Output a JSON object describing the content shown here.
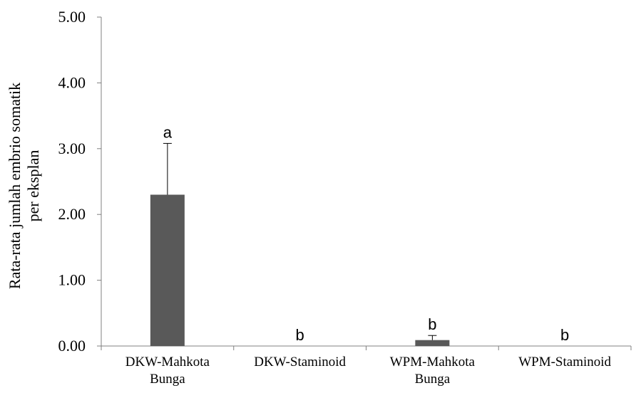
{
  "chart_data": {
    "type": "bar",
    "categories": [
      [
        "DKW-Mahkota",
        "Bunga"
      ],
      [
        "DKW-Staminoid"
      ],
      [
        "WPM-Mahkota",
        "Bunga"
      ],
      [
        "WPM-Staminoid"
      ]
    ],
    "values": [
      2.3,
      0.0,
      0.09,
      0.0
    ],
    "error_plus": [
      0.78,
      0.0,
      0.07,
      0.0
    ],
    "significance": [
      "a",
      "b",
      "b",
      "b"
    ],
    "ylabel_lines": [
      "Rata-rata jumlah embrio somatik",
      "per eksplan"
    ],
    "ylim": [
      0,
      5
    ],
    "yticks": [
      "0.00",
      "1.00",
      "2.00",
      "3.00",
      "4.00",
      "5.00"
    ],
    "bar_color": "#595959",
    "grid": false
  }
}
